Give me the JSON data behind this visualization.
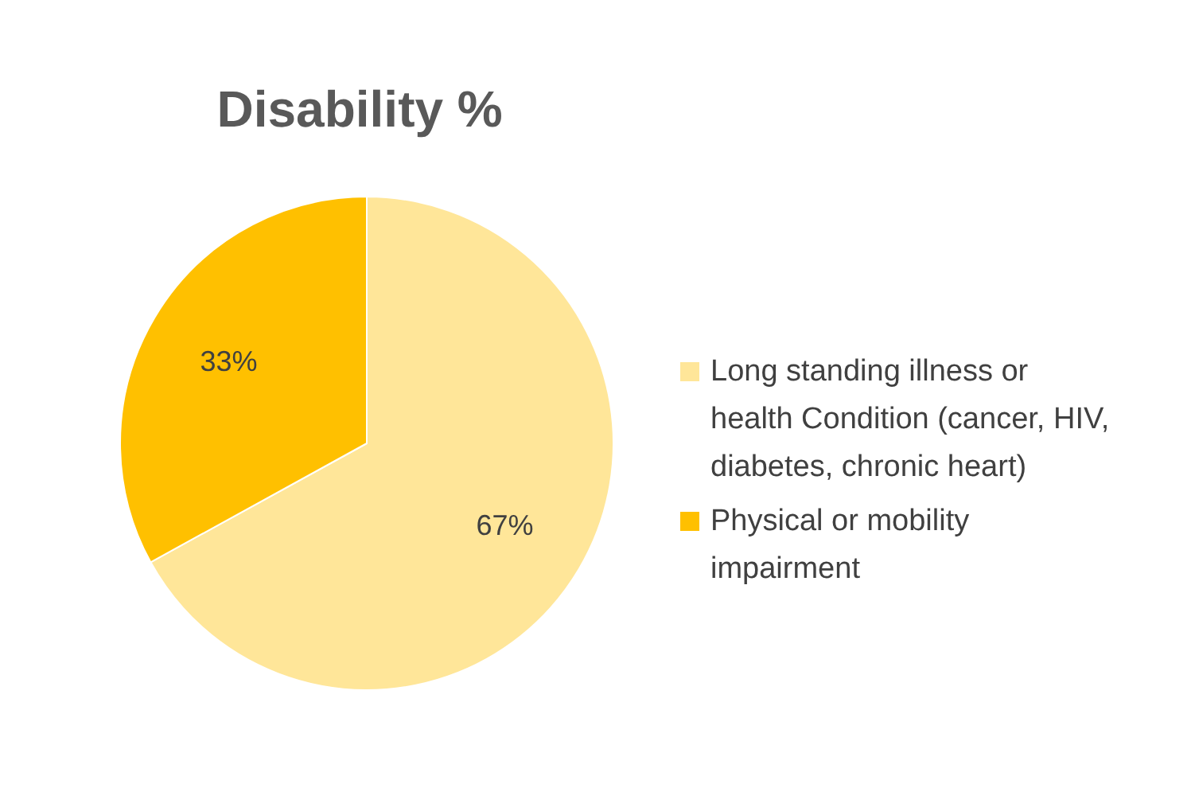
{
  "chart_data": {
    "type": "pie",
    "title": "Disability  %",
    "categories": [
      "Long standing illness or health Condition (cancer, HIV, diabetes, chronic heart)",
      "Physical or mobility impairment"
    ],
    "values": [
      67,
      33
    ],
    "colors": [
      "#ffe699",
      "#ffc000"
    ],
    "value_labels": [
      "67%",
      "33%"
    ],
    "legend": "right"
  }
}
